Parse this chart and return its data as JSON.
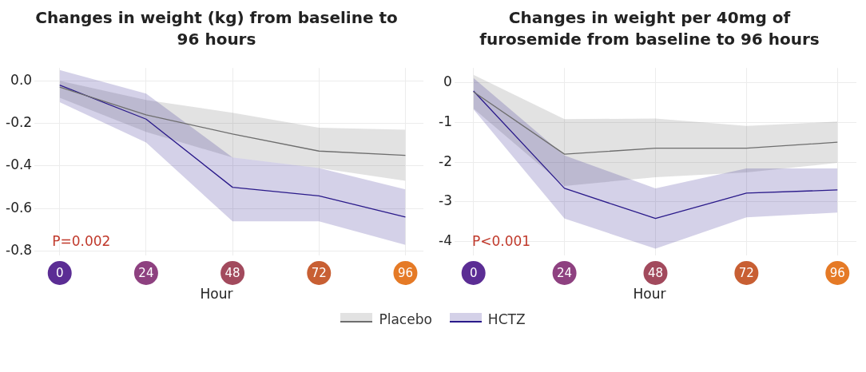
{
  "chart_data": [
    {
      "type": "line",
      "title": "Changes in weight (kg) from baseline to 96 hours",
      "xlabel": "Hour",
      "x": [
        0,
        24,
        48,
        72,
        96
      ],
      "xlim": [
        -7,
        101
      ],
      "xticks": [
        0,
        24,
        48,
        72,
        96
      ],
      "ylim": [
        -0.82,
        0.06
      ],
      "yticks": [
        {
          "value": 0,
          "label": "0.0"
        },
        -0.2,
        -0.4,
        -0.6,
        -0.8
      ],
      "grid": true,
      "legend": "bottom",
      "annotations": [
        "P=0.002"
      ],
      "series": [
        {
          "name": "Placebo",
          "color": "#6e6e6e",
          "values": [
            -0.03,
            -0.16,
            -0.25,
            -0.33,
            -0.35
          ],
          "lower": [
            -0.08,
            -0.24,
            -0.36,
            -0.41,
            -0.47
          ],
          "upper": [
            0.0,
            -0.09,
            -0.15,
            -0.22,
            -0.23
          ]
        },
        {
          "name": "HCTZ",
          "color": "#2a1a8a",
          "values": [
            -0.02,
            -0.18,
            -0.5,
            -0.54,
            -0.64
          ],
          "lower": [
            -0.1,
            -0.29,
            -0.66,
            -0.66,
            -0.77
          ],
          "upper": [
            0.05,
            -0.06,
            -0.36,
            -0.41,
            -0.51
          ]
        }
      ]
    },
    {
      "type": "line",
      "title": "Changes in weight per 40mg of furosemide from baseline to 96 hours",
      "xlabel": "Hour",
      "x": [
        0,
        24,
        48,
        72,
        96
      ],
      "xlim": [
        -5,
        101
      ],
      "xticks": [
        0,
        24,
        48,
        72,
        96
      ],
      "ylim": [
        -4.35,
        0.37
      ],
      "yticks": [
        0,
        -1,
        -2,
        -3,
        -4
      ],
      "grid": true,
      "annotations": [
        "P<0.001"
      ],
      "series": [
        {
          "color": "#6e6e6e",
          "values": [
            -0.23,
            -1.8,
            -1.65,
            -1.65,
            -1.5
          ],
          "lower": [
            -0.65,
            -2.6,
            -2.38,
            -2.26,
            -2.02
          ],
          "upper": [
            0.2,
            -0.92,
            -0.9,
            -1.09,
            -0.98
          ]
        },
        {
          "color": "#2a1a8a",
          "values": [
            -0.21,
            -2.66,
            -3.42,
            -2.78,
            -2.7
          ],
          "lower": [
            -0.67,
            -3.42,
            -4.18,
            -3.39,
            -3.27
          ],
          "upper": [
            0.12,
            -1.83,
            -2.66,
            -2.16,
            -2.16
          ]
        }
      ]
    }
  ]
}
